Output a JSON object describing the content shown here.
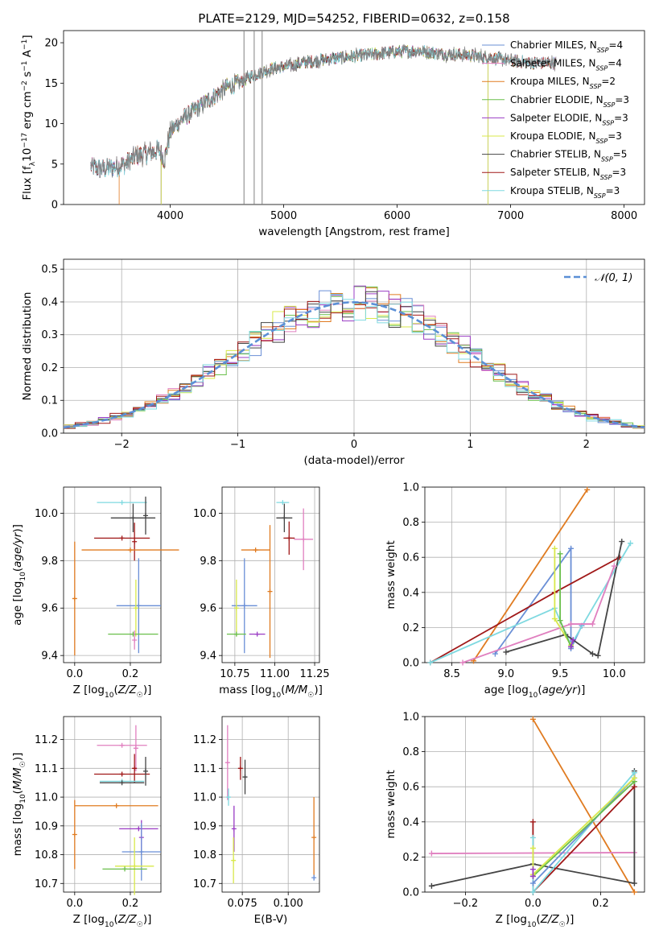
{
  "figure": {
    "title": "PLATE=2129, MJD=54252, FIBERID=0632, z=0.158"
  },
  "chart_data": [
    {
      "id": "spectrum",
      "type": "line",
      "title": "PLATE=2129, MJD=54252, FIBERID=0632, z=0.158",
      "xlabel": "wavelength [Angstrom, rest frame]",
      "ylabel": "Flux [f_λ10^-17 erg cm^-2 s^-1 A^-1]",
      "xlim": [
        3060,
        8180
      ],
      "ylim": [
        0,
        21.5
      ],
      "xticks": [
        4000,
        5000,
        6000,
        7000,
        8000
      ],
      "yticks": [
        0,
        5,
        10,
        15,
        20
      ],
      "grid": false,
      "legend": "top-right",
      "continuum": {
        "x": [
          3300,
          3400,
          3500,
          3600,
          3700,
          3800,
          3900,
          3950,
          4000,
          4100,
          4200,
          4300,
          4400,
          4500,
          4600,
          4700,
          4800,
          4900,
          5000,
          5200,
          5400,
          5600,
          5800,
          6000,
          6200,
          6400,
          6600,
          6800,
          7000,
          7200,
          7400
        ],
        "y": [
          4.6,
          4.4,
          4.6,
          5.0,
          6.0,
          6.3,
          6.8,
          5.5,
          9.0,
          10.5,
          11.5,
          12.5,
          13.5,
          14.5,
          15.0,
          15.8,
          16.3,
          16.8,
          17.0,
          17.6,
          18.0,
          18.3,
          18.6,
          18.9,
          19.0,
          18.6,
          18.5,
          18.2,
          17.8,
          17.5,
          17.5
        ]
      },
      "series": [
        {
          "name": "Chabrier MILES, N_SSP=4",
          "color": "#6a8fd6",
          "start": 3300,
          "end": 7400
        },
        {
          "name": "Salpeter MILES, N_SSP=4",
          "color": "#e07fbf",
          "start": 3300,
          "end": 7400
        },
        {
          "name": "Kroupa MILES, N_SSP=2",
          "color": "#e07b20",
          "start": 3550,
          "end": 7400
        },
        {
          "name": "Chabrier ELODIE, N_SSP=3",
          "color": "#6abf4b",
          "start": 3920,
          "end": 6800
        },
        {
          "name": "Salpeter ELODIE, N_SSP=3",
          "color": "#9a3cc4",
          "start": 3920,
          "end": 6800
        },
        {
          "name": "Kroupa ELODIE, N_SSP=3",
          "color": "#d8e84a",
          "start": 3920,
          "end": 6800
        },
        {
          "name": "Chabrier STELIB, N_SSP=5",
          "color": "#444444",
          "start": 3300,
          "end": 7400
        },
        {
          "name": "Salpeter STELIB, N_SSP=3",
          "color": "#a01818",
          "start": 3300,
          "end": 7400
        },
        {
          "name": "Kroupa STELIB, N_SSP=3",
          "color": "#7fd9e0",
          "start": 3300,
          "end": 7400
        }
      ],
      "data_color": "#808080"
    },
    {
      "id": "residuals",
      "type": "line",
      "xlabel": "(data-model)/error",
      "ylabel": "Normed distribution",
      "xlim": [
        -2.5,
        2.5
      ],
      "ylim": [
        0,
        0.53
      ],
      "xticks": [
        -2,
        -1,
        0,
        1,
        2
      ],
      "yticks": [
        0.0,
        0.1,
        0.2,
        0.3,
        0.4,
        0.5
      ],
      "grid": true,
      "legend": "top-right",
      "reference": {
        "name": "N(0,1)",
        "label_math": "𝒩(0, 1)",
        "mean": 0,
        "sigma": 1,
        "color": "#5b8fd6"
      },
      "bin_width": 0.1,
      "hist_colors": [
        "#6a8fd6",
        "#e07fbf",
        "#e07b20",
        "#6abf4b",
        "#9a3cc4",
        "#d8e84a",
        "#444444",
        "#a01818",
        "#7fd9e0"
      ]
    },
    {
      "id": "age-vs-Z",
      "type": "scatter",
      "xlabel": "Z [log10(Z/Z☉)]",
      "ylabel": "age [log10(age/yr)]",
      "xlim": [
        -0.04,
        0.31
      ],
      "ylim": [
        9.37,
        10.11
      ],
      "xticks": [
        0.0,
        0.2
      ],
      "yticks": [
        9.4,
        9.6,
        9.8,
        10.0
      ],
      "grid": true,
      "points": [
        {
          "x": 0.17,
          "y": 10.045,
          "xerr": 0.09,
          "yerr": 0.0,
          "color": "#7fd9e0"
        },
        {
          "x": 0.21,
          "y": 9.98,
          "xerr": 0.08,
          "yerr": 0.06,
          "color": "#444444"
        },
        {
          "x": 0.255,
          "y": 9.99,
          "xerr": 0.0,
          "yerr": 0.08,
          "color": "#444444"
        },
        {
          "x": 0.17,
          "y": 9.895,
          "xerr": 0.1,
          "yerr": 0.0,
          "color": "#a01818"
        },
        {
          "x": 0.215,
          "y": 9.88,
          "xerr": 0.0,
          "yerr": 0.08,
          "color": "#a01818"
        },
        {
          "x": 0.2,
          "y": 9.845,
          "xerr": 0.175,
          "yerr": 0.0,
          "color": "#e07b20"
        },
        {
          "x": 0.0,
          "y": 9.64,
          "xerr": 0.0,
          "yerr": 0.24,
          "color": "#e07b20"
        },
        {
          "x": 0.23,
          "y": 9.61,
          "xerr": 0.08,
          "yerr": 0.2,
          "color": "#6a8fd6"
        },
        {
          "x": 0.22,
          "y": 9.6,
          "xerr": 0.0,
          "yerr": 0.12,
          "color": "#d8e84a"
        },
        {
          "x": 0.21,
          "y": 9.49,
          "xerr": 0.09,
          "yerr": 0.0,
          "color": "#6abf4b"
        },
        {
          "x": 0.215,
          "y": 9.465,
          "xerr": 0.0,
          "yerr": 0.04,
          "color": "#e07fbf"
        }
      ]
    },
    {
      "id": "age-vs-mass",
      "type": "scatter",
      "xlabel": "mass [log10(M/M☉)]",
      "ylabel": "",
      "xlim": [
        10.67,
        11.28
      ],
      "ylim": [
        9.37,
        10.11
      ],
      "xticks": [
        10.75,
        11.0,
        11.25
      ],
      "yticks": [
        9.4,
        9.6,
        9.8,
        10.0
      ],
      "grid": true,
      "points": [
        {
          "x": 11.05,
          "y": 10.045,
          "xerr": 0.04,
          "yerr": 0.0,
          "color": "#7fd9e0"
        },
        {
          "x": 11.06,
          "y": 9.98,
          "xerr": 0.05,
          "yerr": 0.06,
          "color": "#444444"
        },
        {
          "x": 11.09,
          "y": 9.895,
          "xerr": 0.035,
          "yerr": 0.07,
          "color": "#a01818"
        },
        {
          "x": 11.18,
          "y": 9.89,
          "xerr": 0.06,
          "yerr": 0.13,
          "color": "#e07fbf"
        },
        {
          "x": 10.88,
          "y": 9.845,
          "xerr": 0.09,
          "yerr": 0.0,
          "color": "#e07b20"
        },
        {
          "x": 10.97,
          "y": 9.67,
          "xerr": 0.0,
          "yerr": 0.28,
          "color": "#e07b20"
        },
        {
          "x": 10.81,
          "y": 9.61,
          "xerr": 0.08,
          "yerr": 0.2,
          "color": "#6a8fd6"
        },
        {
          "x": 10.76,
          "y": 9.6,
          "xerr": 0.0,
          "yerr": 0.12,
          "color": "#d8e84a"
        },
        {
          "x": 10.76,
          "y": 9.49,
          "xerr": 0.06,
          "yerr": 0.0,
          "color": "#6abf4b"
        },
        {
          "x": 10.89,
          "y": 9.49,
          "xerr": 0.05,
          "yerr": 0.0,
          "color": "#9a3cc4"
        }
      ]
    },
    {
      "id": "weight-vs-age",
      "type": "line",
      "xlabel": "age [log10(age/yr)]",
      "ylabel": "mass weight",
      "xlim": [
        8.25,
        10.28
      ],
      "ylim": [
        0,
        1.0
      ],
      "xticks": [
        8.5,
        9.0,
        9.5,
        10.0
      ],
      "yticks": [
        0.0,
        0.2,
        0.4,
        0.6,
        0.8,
        1.0
      ],
      "grid": true,
      "series": [
        {
          "color": "#e07b20",
          "x": [
            8.7,
            9.75
          ],
          "y": [
            0.01,
            0.985
          ]
        },
        {
          "color": "#6a8fd6",
          "x": [
            8.9,
            9.6,
            9.6,
            9.7
          ],
          "y": [
            0.05,
            0.65,
            0.08,
            0.21
          ]
        },
        {
          "color": "#a01818",
          "x": [
            8.3,
            9.45,
            10.05
          ],
          "y": [
            0.0,
            0.4,
            0.6
          ]
        },
        {
          "color": "#7fd9e0",
          "x": [
            8.3,
            9.45,
            9.6,
            10.15
          ],
          "y": [
            0.0,
            0.31,
            0.1,
            0.68
          ]
        },
        {
          "color": "#444444",
          "x": [
            9.0,
            9.55,
            9.8,
            9.85,
            10.07
          ],
          "y": [
            0.06,
            0.16,
            0.05,
            0.04,
            0.69
          ]
        },
        {
          "color": "#e07fbf",
          "x": [
            8.6,
            9.6,
            9.8,
            10.0
          ],
          "y": [
            0.0,
            0.22,
            0.22,
            0.55
          ]
        },
        {
          "color": "#d8e84a",
          "x": [
            9.45,
            9.45,
            9.6
          ],
          "y": [
            0.65,
            0.25,
            0.1
          ]
        },
        {
          "color": "#6abf4b",
          "x": [
            9.5,
            9.5,
            9.6
          ],
          "y": [
            0.62,
            0.24,
            0.09
          ]
        },
        {
          "color": "#9a3cc4",
          "x": [
            9.6,
            9.62
          ],
          "y": [
            0.09,
            0.13
          ]
        }
      ]
    },
    {
      "id": "mass-vs-Z",
      "type": "scatter",
      "xlabel": "Z [log10(Z/Z☉)]",
      "ylabel": "mass [log10(M/M☉)]",
      "xlim": [
        -0.04,
        0.31
      ],
      "ylim": [
        10.67,
        11.28
      ],
      "xticks": [
        0.0,
        0.2
      ],
      "yticks": [
        10.7,
        10.8,
        10.9,
        11.0,
        11.1,
        11.2
      ],
      "grid": true,
      "points": [
        {
          "x": 0.17,
          "y": 11.18,
          "xerr": 0.09,
          "yerr": 0.0,
          "color": "#e07fbf"
        },
        {
          "x": 0.22,
          "y": 11.17,
          "xerr": 0.0,
          "yerr": 0.08,
          "color": "#e07fbf"
        },
        {
          "x": 0.215,
          "y": 11.1,
          "xerr": 0.0,
          "yerr": 0.05,
          "color": "#a01818"
        },
        {
          "x": 0.17,
          "y": 11.08,
          "xerr": 0.1,
          "yerr": 0.0,
          "color": "#a01818"
        },
        {
          "x": 0.255,
          "y": 11.09,
          "xerr": 0.0,
          "yerr": 0.05,
          "color": "#444444"
        },
        {
          "x": 0.17,
          "y": 11.055,
          "xerr": 0.08,
          "yerr": 0.0,
          "color": "#7fd9e0"
        },
        {
          "x": 0.17,
          "y": 11.05,
          "xerr": 0.08,
          "yerr": 0.0,
          "color": "#444444"
        },
        {
          "x": 0.15,
          "y": 10.97,
          "xerr": 0.15,
          "yerr": 0.0,
          "color": "#e07b20"
        },
        {
          "x": 0.0,
          "y": 10.87,
          "xerr": 0.0,
          "yerr": 0.12,
          "color": "#e07b20"
        },
        {
          "x": 0.23,
          "y": 10.89,
          "xerr": 0.07,
          "yerr": 0.0,
          "color": "#9a3cc4"
        },
        {
          "x": 0.24,
          "y": 10.86,
          "xerr": 0.0,
          "yerr": 0.06,
          "color": "#9a3cc4"
        },
        {
          "x": 0.24,
          "y": 10.81,
          "xerr": 0.07,
          "yerr": 0.1,
          "color": "#6a8fd6"
        },
        {
          "x": 0.215,
          "y": 10.76,
          "xerr": 0.07,
          "yerr": 0.1,
          "color": "#d8e84a"
        },
        {
          "x": 0.18,
          "y": 10.75,
          "xerr": 0.08,
          "yerr": 0.0,
          "color": "#6abf4b"
        }
      ]
    },
    {
      "id": "mass-vs-ebv",
      "type": "scatter",
      "xlabel": "E(B-V)",
      "ylabel": "",
      "xlim": [
        0.064,
        0.117
      ],
      "ylim": [
        10.67,
        11.28
      ],
      "xticks": [
        0.075,
        0.1
      ],
      "yticks": [
        10.7,
        10.8,
        10.9,
        11.0,
        11.1,
        11.2
      ],
      "grid": true,
      "points": [
        {
          "x": 0.067,
          "y": 11.12,
          "xerr": 0.0,
          "yerr": 0.13,
          "color": "#e07fbf"
        },
        {
          "x": 0.0675,
          "y": 11.0,
          "xerr": 0.0,
          "yerr": 0.03,
          "color": "#7fd9e0"
        },
        {
          "x": 0.074,
          "y": 11.1,
          "xerr": 0.0,
          "yerr": 0.04,
          "color": "#a01818"
        },
        {
          "x": 0.0765,
          "y": 11.07,
          "xerr": 0.0,
          "yerr": 0.06,
          "color": "#444444"
        },
        {
          "x": 0.0705,
          "y": 10.89,
          "xerr": 0.0,
          "yerr": 0.08,
          "color": "#9a3cc4"
        },
        {
          "x": 0.0702,
          "y": 10.78,
          "xerr": 0.0,
          "yerr": 0.08,
          "color": "#d8e84a"
        },
        {
          "x": 0.114,
          "y": 10.86,
          "xerr": 0.0,
          "yerr": 0.14,
          "color": "#e07b20"
        },
        {
          "x": 0.114,
          "y": 10.72,
          "xerr": 0.0,
          "yerr": 0.01,
          "color": "#6a8fd6"
        }
      ]
    },
    {
      "id": "weight-vs-Z",
      "type": "line",
      "xlabel": "Z [log10(Z/Z☉)]",
      "ylabel": "mass weight",
      "xlim": [
        -0.32,
        0.33
      ],
      "ylim": [
        0,
        1.0
      ],
      "xticks": [
        -0.2,
        0.0,
        0.2
      ],
      "yticks": [
        0.0,
        0.2,
        0.4,
        0.6,
        0.8,
        1.0
      ],
      "grid": true,
      "series": [
        {
          "color": "#e07b20",
          "x": [
            0.0,
            0.3
          ],
          "y": [
            0.985,
            0.0
          ]
        },
        {
          "color": "#e07fbf",
          "x": [
            -0.3,
            0.3
          ],
          "y": [
            0.22,
            0.225
          ]
        },
        {
          "color": "#444444",
          "x": [
            -0.3,
            0.0,
            0.3,
            0.3
          ],
          "y": [
            0.035,
            0.16,
            0.05,
            0.69
          ]
        },
        {
          "color": "#a01818",
          "x": [
            0.0,
            0.0,
            0.3
          ],
          "y": [
            0.4,
            0.0,
            0.6
          ]
        },
        {
          "color": "#7fd9e0",
          "x": [
            0.0,
            0.0,
            0.3
          ],
          "y": [
            0.31,
            0.0,
            0.68
          ]
        },
        {
          "color": "#6a8fd6",
          "x": [
            0.0,
            0.3
          ],
          "y": [
            0.05,
            0.65
          ]
        },
        {
          "color": "#6abf4b",
          "x": [
            0.0,
            0.3
          ],
          "y": [
            0.09,
            0.63
          ]
        },
        {
          "color": "#d8e84a",
          "x": [
            0.0,
            0.0,
            0.3
          ],
          "y": [
            0.25,
            0.1,
            0.65
          ]
        },
        {
          "color": "#9a3cc4",
          "x": [
            0.0,
            0.0
          ],
          "y": [
            0.09,
            0.13
          ]
        }
      ]
    }
  ]
}
